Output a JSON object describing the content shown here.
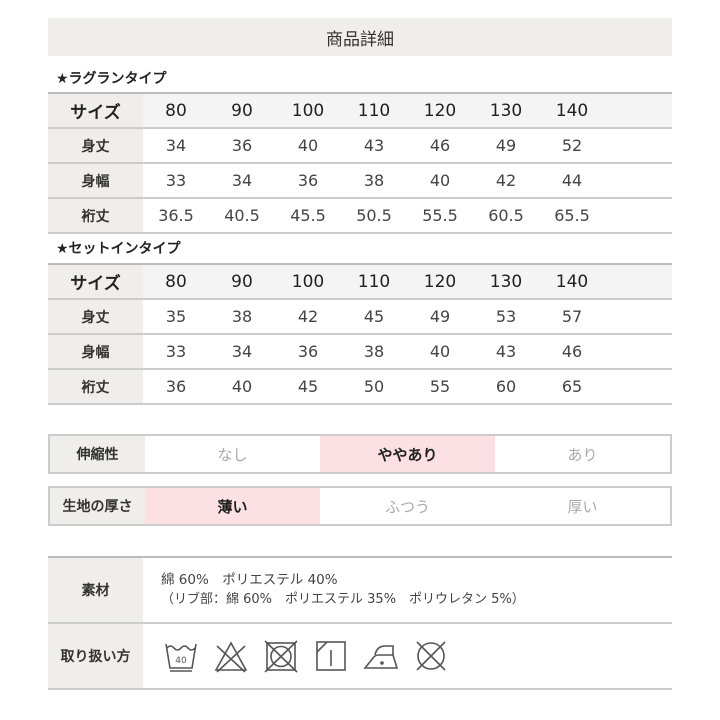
{
  "title": "商品詳細",
  "raglan": {
    "label": "★ラグランタイプ",
    "rows": [
      {
        "label": "サイズ",
        "values": [
          "80",
          "90",
          "100",
          "110",
          "120",
          "130",
          "140"
        ]
      },
      {
        "label": "身丈",
        "values": [
          "34",
          "36",
          "40",
          "43",
          "46",
          "49",
          "52"
        ]
      },
      {
        "label": "身幅",
        "values": [
          "33",
          "34",
          "36",
          "38",
          "40",
          "42",
          "44"
        ]
      },
      {
        "label": "裄丈",
        "values": [
          "36.5",
          "40.5",
          "45.5",
          "50.5",
          "55.5",
          "60.5",
          "65.5"
        ]
      }
    ]
  },
  "setin": {
    "label": "★セットインタイプ",
    "rows": [
      {
        "label": "サイズ",
        "values": [
          "80",
          "90",
          "100",
          "110",
          "120",
          "130",
          "140"
        ]
      },
      {
        "label": "身丈",
        "values": [
          "35",
          "38",
          "42",
          "45",
          "49",
          "53",
          "57"
        ]
      },
      {
        "label": "身幅",
        "values": [
          "33",
          "34",
          "36",
          "38",
          "40",
          "43",
          "46"
        ]
      },
      {
        "label": "裄丈",
        "values": [
          "36",
          "40",
          "45",
          "50",
          "55",
          "60",
          "65"
        ]
      }
    ]
  },
  "stretch": {
    "label": "伸縮性",
    "options": [
      "なし",
      "ややあり",
      "あり"
    ],
    "selected": 1
  },
  "thickness": {
    "label": "生地の厚さ",
    "options": [
      "薄い",
      "ふつう",
      "厚い"
    ],
    "selected": 0
  },
  "material": {
    "label": "素材",
    "line1": "綿 60%　ポリエステル 40%",
    "line2": "（リブ部：綿 60%　ポリエステル 35%　ポリウレタン 5%）"
  },
  "care": {
    "label": "取り扱い方",
    "wash_temp": "40",
    "icons": [
      "wash-40-icon",
      "no-bleach-icon",
      "no-tumble-dry-icon",
      "hang-dry-shade-icon",
      "iron-low-icon",
      "no-dry-clean-icon"
    ]
  },
  "colors": {
    "header_bg": "#efeeea",
    "highlight": "#fde0e3"
  }
}
